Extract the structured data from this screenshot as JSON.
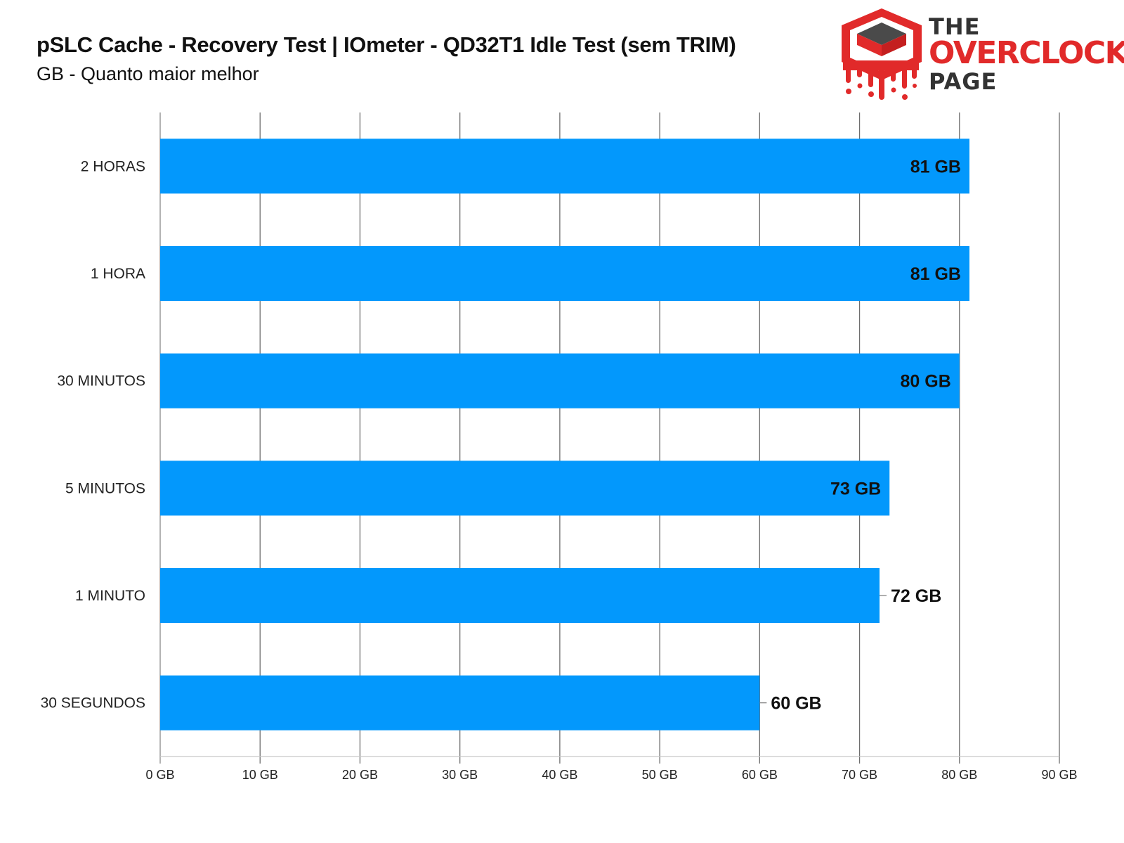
{
  "header": {
    "title": "pSLC Cache - Recovery Test | IOmeter - QD32T1 Idle Test (sem TRIM)",
    "subtitle": "GB - Quanto maior melhor"
  },
  "logo": {
    "line1": "THE",
    "line2": "OVERCLOCK",
    "line3": "PAGE",
    "icon": "dripping-chip-icon",
    "colors": {
      "red": "#e12a2a",
      "dark": "#333333"
    }
  },
  "chart_data": {
    "type": "bar",
    "orientation": "horizontal",
    "categories": [
      "2 HORAS",
      "1 HORA",
      "30 MINUTOS",
      "5 MINUTOS",
      "1 MINUTO",
      "30 SEGUNDOS"
    ],
    "values": [
      81,
      81,
      80,
      73,
      72,
      60
    ],
    "data_labels": [
      "81 GB",
      "81 GB",
      "80 GB",
      "73 GB",
      "72 GB",
      "60 GB"
    ],
    "x_ticks": [
      0,
      10,
      20,
      30,
      40,
      50,
      60,
      70,
      80,
      90
    ],
    "x_tick_labels": [
      "0 GB",
      "10 GB",
      "20 GB",
      "30 GB",
      "40 GB",
      "50 GB",
      "60 GB",
      "70 GB",
      "80 GB",
      "90 GB"
    ],
    "xlim": [
      0,
      90
    ],
    "grid": true,
    "legend": "none",
    "bar_color": "#0398fc"
  }
}
